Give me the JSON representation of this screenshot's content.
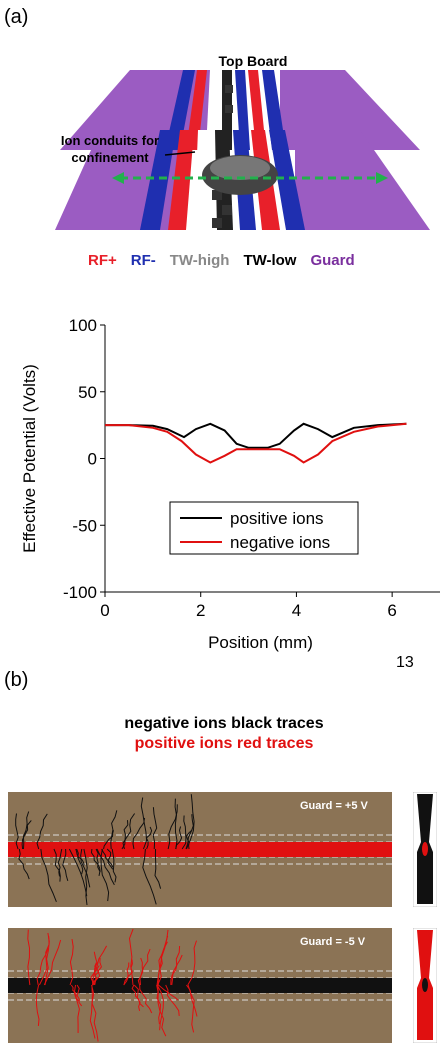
{
  "panel_a_label": "(a)",
  "panel_b_label": "(b)",
  "diagram": {
    "top_label": "Top Board",
    "conduit_label_line1": "Ion conduits for",
    "conduit_label_line2": "confinement",
    "legend": [
      {
        "label": "RF+",
        "color": "#e8202a"
      },
      {
        "label": "RF-",
        "color": "#1f2fb0"
      },
      {
        "label": "TW-high",
        "color": "#888888"
      },
      {
        "label": "TW-low",
        "color": "#000000"
      },
      {
        "label": "Guard",
        "color": "#7a2f9e"
      }
    ],
    "colors": {
      "guard": "#9b5cc2",
      "rf_plus": "#e8202a",
      "rf_minus": "#1f2fb0",
      "tw_high": "#9a9a9a",
      "tw_low": "#000000",
      "arrow": "#22b14c"
    }
  },
  "page_number": "13",
  "traces_caption": {
    "line1": "negative ions black traces",
    "line2": "positive ions red traces"
  },
  "sims": [
    {
      "guard_label": "Guard = +5 V"
    },
    {
      "guard_label": "Guard = -5 V"
    }
  ],
  "chart_data": {
    "type": "line",
    "xlabel": "Position (mm)",
    "ylabel": "Effective Potential (Volts)",
    "xlim": [
      0,
      7
    ],
    "ylim": [
      -100,
      100
    ],
    "x_ticks": [
      "0",
      "2",
      "4",
      "6"
    ],
    "y_ticks": [
      "100",
      "50",
      "0",
      "-50",
      "-100"
    ],
    "legend_position": "center",
    "series": [
      {
        "name": "positive ions",
        "color": "#000000",
        "x": [
          0,
          0.5,
          1.0,
          1.3,
          1.65,
          1.9,
          2.2,
          2.5,
          2.75,
          3.0,
          3.15,
          3.4,
          3.65,
          3.95,
          4.15,
          4.45,
          4.75,
          5.2,
          5.7,
          6.3
        ],
        "y": [
          25,
          25,
          24.5,
          22,
          16,
          22,
          26,
          21,
          11,
          8,
          8,
          8,
          11,
          21,
          26,
          22,
          16,
          23,
          25,
          26
        ]
      },
      {
        "name": "negative ions",
        "color": "#e01010",
        "x": [
          0,
          0.5,
          1.0,
          1.3,
          1.6,
          1.9,
          2.2,
          2.5,
          2.75,
          3.0,
          3.15,
          3.4,
          3.65,
          3.95,
          4.15,
          4.45,
          4.75,
          5.2,
          5.7,
          6.3
        ],
        "y": [
          25,
          25,
          23,
          20,
          13,
          3,
          -3,
          2,
          7,
          7,
          7,
          7,
          7,
          2,
          -3,
          3,
          13,
          20,
          24,
          26
        ]
      }
    ]
  }
}
